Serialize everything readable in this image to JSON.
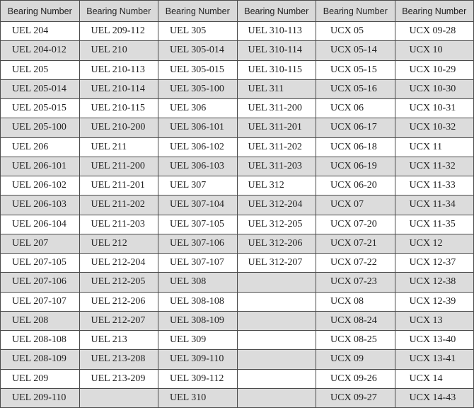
{
  "table": {
    "headers": [
      "Bearing Number",
      "Bearing Number",
      "Bearing Number",
      "Bearing Number",
      "Bearing Number",
      "Bearing Number"
    ],
    "rows": [
      [
        "UEL 204",
        "UEL 209-112",
        "UEL 305",
        "UEL 310-113",
        "UCX 05",
        "UCX 09-28"
      ],
      [
        "UEL 204-012",
        "UEL 210",
        "UEL 305-014",
        "UEL 310-114",
        "UCX 05-14",
        "UCX 10"
      ],
      [
        "UEL 205",
        "UEL 210-113",
        "UEL 305-015",
        "UEL 310-115",
        "UCX 05-15",
        "UCX 10-29"
      ],
      [
        "UEL 205-014",
        "UEL 210-114",
        "UEL 305-100",
        "UEL 311",
        "UCX 05-16",
        "UCX 10-30"
      ],
      [
        "UEL 205-015",
        "UEL 210-115",
        "UEL 306",
        "UEL 311-200",
        "UCX 06",
        "UCX 10-31"
      ],
      [
        "UEL 205-100",
        "UEL 210-200",
        "UEL 306-101",
        "UEL 311-201",
        "UCX 06-17",
        "UCX 10-32"
      ],
      [
        "UEL 206",
        "UEL 211",
        "UEL 306-102",
        "UEL 311-202",
        "UCX 06-18",
        "UCX 11"
      ],
      [
        "UEL 206-101",
        "UEL 211-200",
        "UEL 306-103",
        "UEL 311-203",
        "UCX 06-19",
        "UCX 11-32"
      ],
      [
        "UEL 206-102",
        "UEL 211-201",
        "UEL 307",
        "UEL 312",
        "UCX 06-20",
        "UCX 11-33"
      ],
      [
        "UEL 206-103",
        "UEL 211-202",
        "UEL 307-104",
        "UEL 312-204",
        "UCX 07",
        "UCX 11-34"
      ],
      [
        "UEL 206-104",
        "UEL 211-203",
        "UEL 307-105",
        "UEL 312-205",
        "UCX 07-20",
        "UCX 11-35"
      ],
      [
        "UEL 207",
        "UEL 212",
        "UEL 307-106",
        "UEL 312-206",
        "UCX 07-21",
        "UCX 12"
      ],
      [
        "UEL 207-105",
        "UEL 212-204",
        "UEL 307-107",
        "UEL 312-207",
        "UCX 07-22",
        "UCX 12-37"
      ],
      [
        "UEL 207-106",
        "UEL 212-205",
        "UEL 308",
        "",
        "UCX 07-23",
        "UCX 12-38"
      ],
      [
        "UEL 207-107",
        "UEL 212-206",
        "UEL 308-108",
        "",
        "UCX 08",
        "UCX 12-39"
      ],
      [
        "UEL 208",
        "UEL 212-207",
        "UEL 308-109",
        "",
        "UCX 08-24",
        "UCX 13"
      ],
      [
        "UEL 208-108",
        "UEL 213",
        "UEL 309",
        "",
        "UCX 08-25",
        "UCX 13-40"
      ],
      [
        "UEL 208-109",
        "UEL 213-208",
        "UEL 309-110",
        "",
        "UCX 09",
        "UCX 13-41"
      ],
      [
        "UEL 209",
        "UEL 213-209",
        "UEL 309-112",
        "",
        "UCX 09-26",
        "UCX 14"
      ],
      [
        "UEL 209-110",
        "",
        "UEL 310",
        "",
        "UCX 09-27",
        "UCX 14-43"
      ]
    ]
  },
  "colors": {
    "header_bg": "#d9d9d9",
    "alt_row_bg": "#dcdcdc",
    "border": "#4a4a4a"
  }
}
